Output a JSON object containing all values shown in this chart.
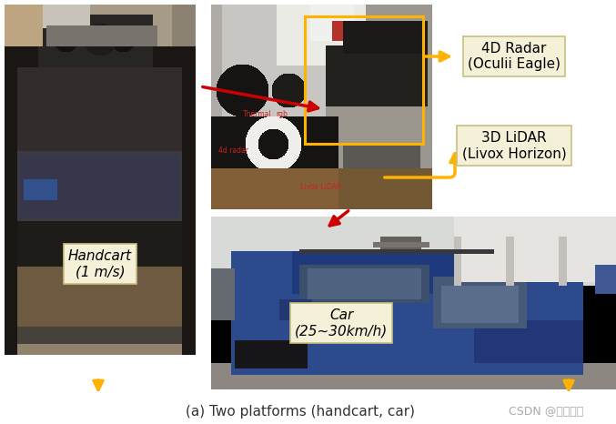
{
  "fig_width": 6.77,
  "fig_height": 4.66,
  "dpi": 100,
  "bg_color": "#ffffff",
  "caption": "(a) Two platforms (handcart, car)",
  "caption_fontsize": 11,
  "watermark": "CSDN @稻壳特筑",
  "watermark_fontsize": 9,
  "watermark_color": "#aaaaaa",
  "label_box_color": "#f5f0d8",
  "label_box_edge": "#c8c080",
  "radar_label": "4D Radar\n(Oculii Eagle)",
  "lidar_label": "3D LiDAR\n(Livox Horizon)",
  "handcart_label": "Handcart\n(1 m/s)",
  "car_label": "Car\n(25~30km/h)",
  "arrow_color_yellow": "#FFB300",
  "arrow_color_red": "#CC0000"
}
